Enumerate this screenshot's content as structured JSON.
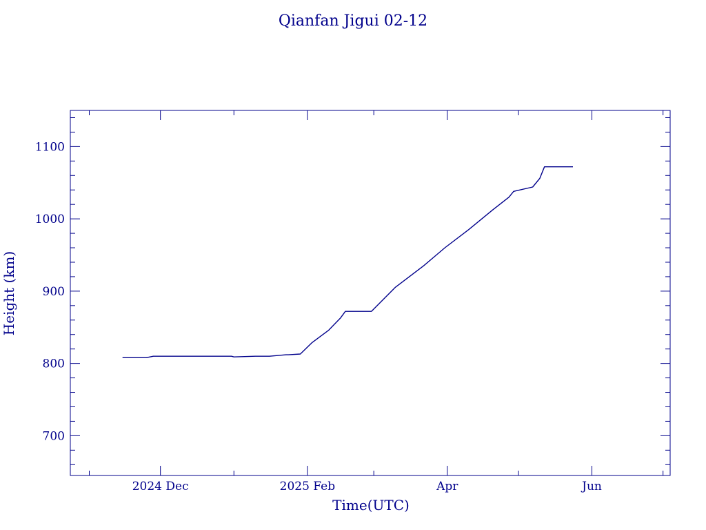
{
  "colors": {
    "foreground": "#00008b",
    "background": "#ffffff"
  },
  "chart_data": {
    "type": "line",
    "title": "Qianfan Jigui 02-12",
    "xlabel": "Time(UTC)",
    "ylabel": "Height (km)",
    "x_range": [
      "2024-10-24",
      "2025-07-04"
    ],
    "ylim": [
      645,
      1150
    ],
    "y_ticks": [
      700,
      800,
      900,
      1000,
      1100
    ],
    "x_ticks": [
      {
        "date": "2024-12-01",
        "label": "2024 Dec"
      },
      {
        "date": "2025-02-01",
        "label": "2025 Feb"
      },
      {
        "date": "2025-04-01",
        "label": "Apr"
      },
      {
        "date": "2025-06-01",
        "label": "Jun"
      }
    ],
    "grid": false,
    "series": [
      {
        "x": [
          "2024-11-15",
          "2024-11-25",
          "2024-11-28",
          "2024-12-15",
          "2024-12-31",
          "2025-01-01",
          "2025-01-10",
          "2025-01-16",
          "2025-01-23",
          "2025-01-24",
          "2025-01-29",
          "2025-02-03",
          "2025-02-10",
          "2025-02-15",
          "2025-02-17",
          "2025-02-28",
          "2025-03-10",
          "2025-03-22",
          "2025-03-31",
          "2025-04-10",
          "2025-04-20",
          "2025-04-27",
          "2025-04-29",
          "2025-05-07",
          "2025-05-10",
          "2025-05-12",
          "2025-05-24"
        ],
        "y": [
          808,
          808,
          810,
          810,
          810,
          809,
          810,
          810,
          812,
          812,
          813,
          829,
          846,
          863,
          872,
          872,
          905,
          935,
          960,
          985,
          1012,
          1030,
          1038,
          1044,
          1056,
          1072,
          1072
        ]
      }
    ]
  }
}
